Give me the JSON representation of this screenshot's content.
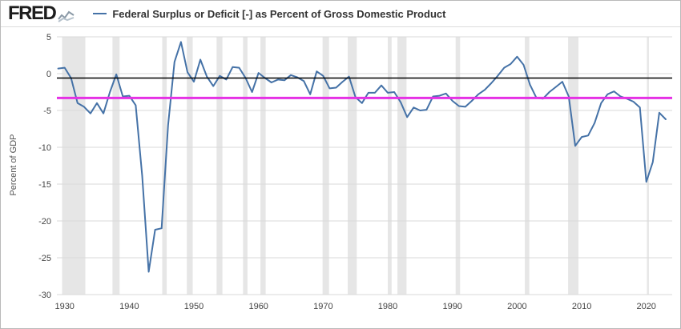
{
  "header": {
    "logo_text": "FRED",
    "legend_label": "Federal Surplus or Deficit [-] as Percent of Gross Domestic Product"
  },
  "chart_data": {
    "type": "line",
    "title": "",
    "xlabel": "",
    "ylabel": "Percent of GDP",
    "xlim": [
      1928.8,
      2024
    ],
    "ylim": [
      -30,
      5
    ],
    "x_ticks": [
      1930,
      1940,
      1950,
      1960,
      1970,
      1980,
      1990,
      2000,
      2010,
      2020
    ],
    "y_ticks": [
      5,
      0,
      -5,
      -10,
      -15,
      -20,
      -25,
      -30
    ],
    "grid_on": true,
    "grid_color": "#d9d9d9",
    "band_color": "#e6e6e6",
    "tick_label_color": "#444444",
    "legend_position": "top-left",
    "series": [
      {
        "name": "Federal Surplus or Deficit [-] as Percent of Gross Domestic Product",
        "color": "#4572a7",
        "x_start": 1929,
        "x_step": 1,
        "values": [
          0.7,
          0.8,
          -0.6,
          -4.0,
          -4.5,
          -5.4,
          -4.0,
          -5.4,
          -2.5,
          -0.1,
          -3.1,
          -3.0,
          -4.3,
          -13.9,
          -26.9,
          -21.2,
          -21.0,
          -7.0,
          1.6,
          4.3,
          0.2,
          -1.1,
          1.9,
          -0.4,
          -1.7,
          -0.3,
          -0.8,
          0.9,
          0.8,
          -0.6,
          -2.5,
          0.1,
          -0.6,
          -1.2,
          -0.8,
          -0.9,
          -0.2,
          -0.5,
          -1.0,
          -2.8,
          0.3,
          -0.3,
          -2.0,
          -1.9,
          -1.1,
          -0.4,
          -3.2,
          -4.0,
          -2.6,
          -2.6,
          -1.6,
          -2.6,
          -2.5,
          -3.9,
          -5.9,
          -4.6,
          -5.0,
          -4.9,
          -3.1,
          -3.0,
          -2.7,
          -3.7,
          -4.4,
          -4.5,
          -3.7,
          -2.8,
          -2.2,
          -1.3,
          -0.3,
          0.8,
          1.3,
          2.3,
          1.2,
          -1.5,
          -3.3,
          -3.4,
          -2.5,
          -1.8,
          -1.1,
          -3.1,
          -9.8,
          -8.6,
          -8.4,
          -6.7,
          -4.0,
          -2.8,
          -2.4,
          -3.1,
          -3.4,
          -3.8,
          -4.6,
          -14.7,
          -12.0,
          -5.3,
          -6.2
        ]
      }
    ],
    "reference_lines": [
      {
        "name": "black-reference-line",
        "value": -0.6,
        "color": "#000000",
        "width": 1.5
      },
      {
        "name": "magenta-reference-line",
        "value": -3.3,
        "color": "#e531e5",
        "width": 3
      }
    ],
    "recession_bands": [
      [
        1929.6,
        1933.2
      ],
      [
        1937.4,
        1938.5
      ],
      [
        1945.1,
        1945.8
      ],
      [
        1948.9,
        1949.8
      ],
      [
        1953.5,
        1954.4
      ],
      [
        1957.6,
        1958.3
      ],
      [
        1960.3,
        1961.1
      ],
      [
        1969.9,
        1970.9
      ],
      [
        1973.8,
        1975.2
      ],
      [
        1980.0,
        1980.6
      ],
      [
        1981.5,
        1982.9
      ],
      [
        1990.5,
        1991.2
      ],
      [
        2001.2,
        2001.9
      ],
      [
        2007.9,
        2009.5
      ],
      [
        2020.1,
        2020.4
      ]
    ]
  }
}
